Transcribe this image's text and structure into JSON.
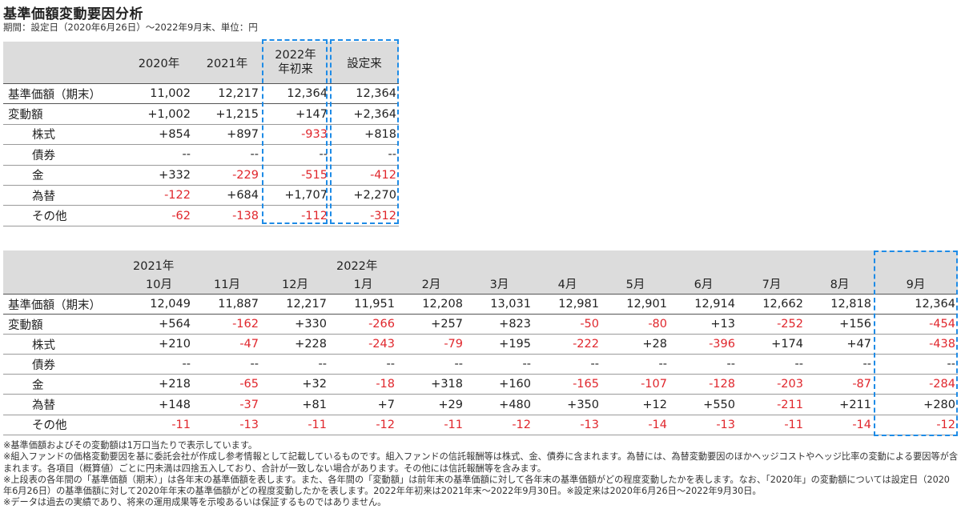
{
  "title": "基準価額変動要因分析",
  "subtitle": "期間：設定日（2020年6月26日）～2022年9月末、単位：円",
  "table1": {
    "headers": [
      "2020年",
      "2021年",
      "2022年",
      "年初来",
      "設定来"
    ],
    "rows": [
      {
        "label": "基準価額（期末）",
        "values": [
          "11,002",
          "12,217",
          "12,364",
          "12,364"
        ]
      },
      {
        "label": "変動額",
        "values": [
          "+1,002",
          "+1,215",
          "+147",
          "+2,364"
        ]
      },
      {
        "label": "株式",
        "values": [
          "+854",
          "+897",
          "-933",
          "+818"
        ]
      },
      {
        "label": "債券",
        "values": [
          "--",
          "--",
          "--",
          "--"
        ]
      },
      {
        "label": "金",
        "values": [
          "+332",
          "-229",
          "-515",
          "-412"
        ]
      },
      {
        "label": "為替",
        "values": [
          "-122",
          "+684",
          "+1,707",
          "+2,270"
        ]
      },
      {
        "label": "その他",
        "values": [
          "-62",
          "-138",
          "-112",
          "-312"
        ]
      }
    ]
  },
  "table2": {
    "year_labels": [
      "2021年",
      "2022年"
    ],
    "months": [
      "10月",
      "11月",
      "12月",
      "1月",
      "2月",
      "3月",
      "4月",
      "5月",
      "6月",
      "7月",
      "8月",
      "9月"
    ],
    "rows": [
      {
        "label": "基準価額（期末）",
        "values": [
          "12,049",
          "11,887",
          "12,217",
          "11,951",
          "12,208",
          "13,031",
          "12,981",
          "12,901",
          "12,914",
          "12,662",
          "12,818",
          "12,364"
        ]
      },
      {
        "label": "変動額",
        "values": [
          "+564",
          "-162",
          "+330",
          "-266",
          "+257",
          "+823",
          "-50",
          "-80",
          "+13",
          "-252",
          "+156",
          "-454"
        ]
      },
      {
        "label": "株式",
        "values": [
          "+210",
          "-47",
          "+228",
          "-243",
          "-79",
          "+195",
          "-222",
          "+28",
          "-396",
          "+174",
          "+47",
          "-438"
        ]
      },
      {
        "label": "債券",
        "values": [
          "--",
          "--",
          "--",
          "--",
          "--",
          "--",
          "--",
          "--",
          "--",
          "--",
          "--",
          "--"
        ]
      },
      {
        "label": "金",
        "values": [
          "+218",
          "-65",
          "+32",
          "-18",
          "+318",
          "+160",
          "-165",
          "-107",
          "-128",
          "-203",
          "-87",
          "-284"
        ]
      },
      {
        "label": "為替",
        "values": [
          "+148",
          "-37",
          "+81",
          "+7",
          "+29",
          "+480",
          "+350",
          "+12",
          "+550",
          "-211",
          "+211",
          "+280"
        ]
      },
      {
        "label": "その他",
        "values": [
          "-11",
          "-13",
          "-11",
          "-12",
          "-11",
          "-12",
          "-13",
          "-14",
          "-13",
          "-11",
          "-14",
          "-12"
        ]
      }
    ]
  },
  "notes": [
    "※基準価額およびその変動額は1万口当たりで表示しています。",
    "※組入ファンドの価格変動要因を基に委託会社が作成し参考情報として記載しているものです。組入ファンドの信託報酬等は株式、金、債券に含まれます。為替には、為替変動要因のほかヘッジコストやヘッジ比率の変動による要因等が含まれます。各項目（概算値）ごとに円未満は四捨五入しており、合計が一致しない場合があります。その他には信託報酬等を含みます。",
    "※上段表の各年間の「基準価額（期末）」は各年末の基準価額を表します。また、各年間の「変動額」は前年末の基準価額に対して各年末の基準価額がどの程度変動したかを表します。なお、「2020年」の変動額については設定日（2020年6月26日）の基準価額に対して2020年年末の基準価額がどの程度変動したかを表します。2022年年初来は2021年末～2022年9月30日。※設定来は2020年6月26日～2022年9月30日。",
    "※データは過去の実績であり、将来の運用成果等を示唆あるいは保証するものではありません。"
  ]
}
